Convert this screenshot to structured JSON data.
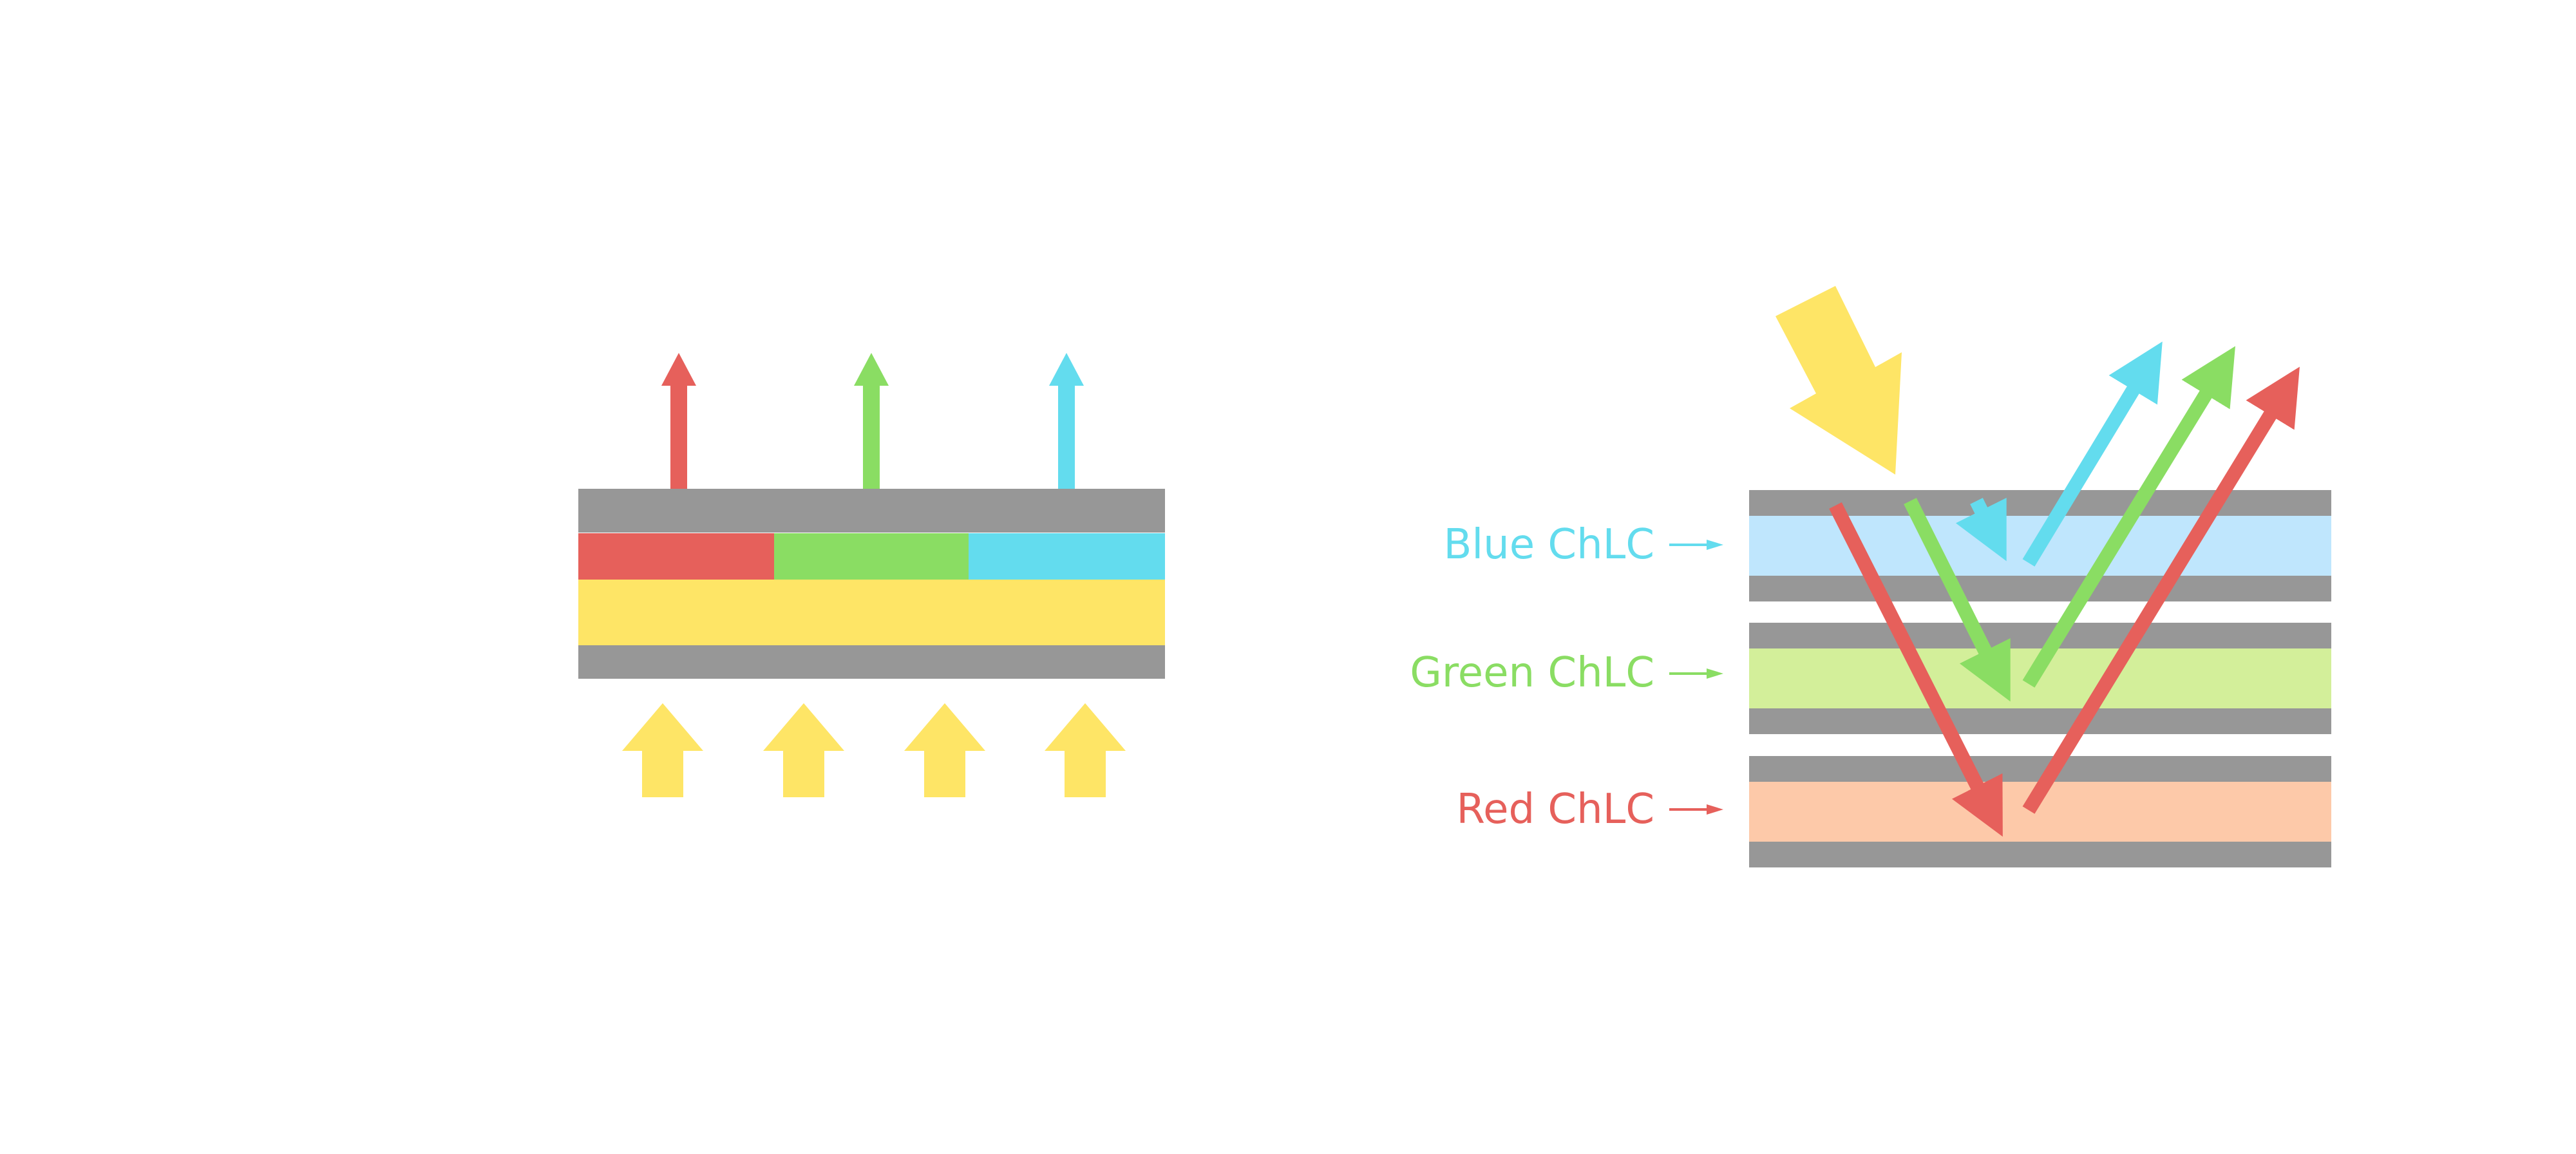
{
  "colors": {
    "red": "#E6605B",
    "green": "#8ADD63",
    "blue": "#63DCEE",
    "yellow": "#FEE566",
    "gray": "#979797",
    "blue_layer": "#BFE6FD",
    "green_layer": "#D3EF9A",
    "red_layer": "#FDC9A9"
  },
  "right_panel": {
    "labels": {
      "blue": "Blue ChLC",
      "green": "Green ChLC",
      "red": "Red ChLC"
    }
  }
}
